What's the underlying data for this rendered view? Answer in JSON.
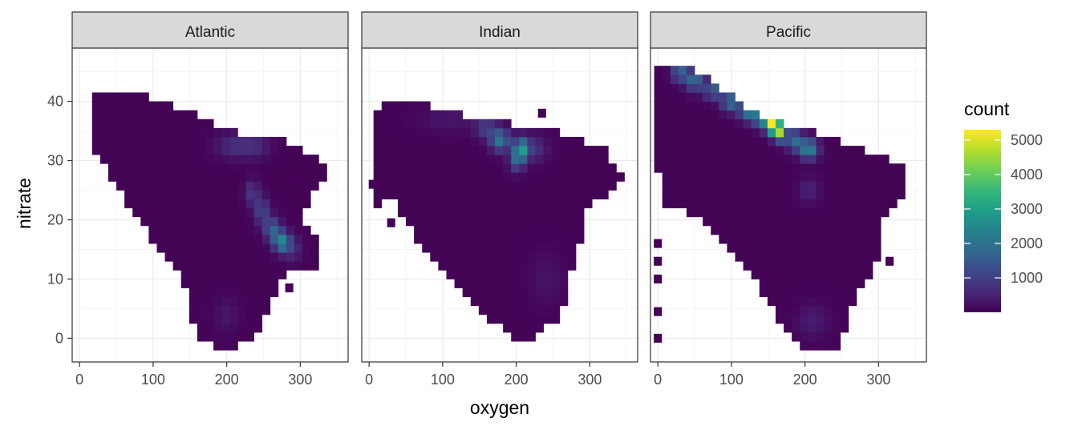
{
  "chart_data": {
    "type": "heatmap",
    "subtype": "2d-bin",
    "xlabel": "oxygen",
    "ylabel": "nitrate",
    "xlim": [
      -10,
      365
    ],
    "ylim": [
      -4,
      49
    ],
    "x_ticks": [
      0,
      100,
      200,
      300
    ],
    "x_tick_labels": [
      "0",
      "100",
      "200",
      "300"
    ],
    "y_ticks": [
      0,
      10,
      20,
      30,
      40
    ],
    "y_tick_labels": [
      "0",
      "10",
      "20",
      "30",
      "40"
    ],
    "grid": true,
    "bin_width_x": 11,
    "bin_width_y": 1.5,
    "colorscale": "viridis",
    "legend": {
      "title": "count",
      "position": "right",
      "min": 1,
      "max": 5300,
      "ticks": [
        1000,
        2000,
        3000,
        4000,
        5000
      ],
      "tick_labels": [
        "1000",
        "2000",
        "3000",
        "4000",
        "5000"
      ]
    },
    "colors": {
      "panel_border": "#333333",
      "strip_fill": "#d9d9d9",
      "grid_major": "#ebebeb",
      "grid_minor": "#f5f5f5",
      "viridis": [
        "#440154",
        "#482878",
        "#3e4989",
        "#31688e",
        "#26828e",
        "#1f9e89",
        "#35b779",
        "#6ece58",
        "#b5de2b",
        "#fde725"
      ]
    },
    "facets": [
      {
        "name": "Atlantic",
        "outline": [
          [
            12,
            40
          ],
          [
            25,
            41.5
          ],
          [
            85,
            41.5
          ],
          [
            160,
            37.5
          ],
          [
            220,
            34.5
          ],
          [
            280,
            33.5
          ],
          [
            320,
            31
          ],
          [
            340,
            29
          ],
          [
            320,
            25
          ],
          [
            300,
            21
          ],
          [
            320,
            17
          ],
          [
            325,
            12
          ],
          [
            285,
            11
          ],
          [
            260,
            7
          ],
          [
            250,
            3
          ],
          [
            230,
            -1
          ],
          [
            190,
            -1.5
          ],
          [
            165,
            -1
          ],
          [
            150,
            3
          ],
          [
            145,
            8
          ],
          [
            125,
            13
          ],
          [
            100,
            16
          ],
          [
            70,
            22
          ],
          [
            45,
            27
          ],
          [
            25,
            31
          ],
          [
            12,
            34
          ]
        ],
        "hotspots": [
          {
            "x": 275,
            "y": 16.3,
            "count": 2400,
            "sx": 8,
            "sy": 1.2
          },
          {
            "x": 262,
            "y": 18.5,
            "count": 1500,
            "sx": 8,
            "sy": 1.3
          },
          {
            "x": 248,
            "y": 21.5,
            "count": 1100,
            "sx": 7,
            "sy": 1.5
          },
          {
            "x": 235,
            "y": 24.5,
            "count": 850,
            "sx": 7,
            "sy": 1.5
          },
          {
            "x": 210,
            "y": 32.5,
            "count": 650,
            "sx": 18,
            "sy": 1.5
          },
          {
            "x": 240,
            "y": 32.5,
            "count": 500,
            "sx": 14,
            "sy": 1.5
          },
          {
            "x": 290,
            "y": 15,
            "count": 600,
            "sx": 9,
            "sy": 1.5
          },
          {
            "x": 200,
            "y": 4,
            "count": 300,
            "sx": 12,
            "sy": 2
          }
        ]
      },
      {
        "name": "Indian",
        "outline": [
          [
            10,
            38
          ],
          [
            15,
            39.5
          ],
          [
            65,
            40
          ],
          [
            140,
            37.5
          ],
          [
            230,
            35.5
          ],
          [
            270,
            34.5
          ],
          [
            320,
            32
          ],
          [
            345,
            27.5
          ],
          [
            330,
            24.5
          ],
          [
            300,
            23.5
          ],
          [
            290,
            18
          ],
          [
            280,
            14
          ],
          [
            272,
            9
          ],
          [
            262,
            4
          ],
          [
            245,
            2
          ],
          [
            225,
            0
          ],
          [
            212,
            -1
          ],
          [
            195,
            0
          ],
          [
            165,
            3
          ],
          [
            150,
            5
          ],
          [
            120,
            9
          ],
          [
            100,
            12
          ],
          [
            70,
            15
          ],
          [
            50,
            20
          ],
          [
            35,
            23
          ],
          [
            15,
            23
          ],
          [
            5,
            19
          ],
          [
            5,
            30
          ]
        ],
        "hotspots": [
          {
            "x": 207,
            "y": 32,
            "count": 2600,
            "sx": 7,
            "sy": 1.3
          },
          {
            "x": 178,
            "y": 33.5,
            "count": 2100,
            "sx": 9,
            "sy": 1.3
          },
          {
            "x": 158,
            "y": 35.5,
            "count": 900,
            "sx": 10,
            "sy": 1.3
          },
          {
            "x": 200,
            "y": 30,
            "count": 1400,
            "sx": 7,
            "sy": 1.3
          },
          {
            "x": 225,
            "y": 32,
            "count": 700,
            "sx": 12,
            "sy": 1.5
          },
          {
            "x": 110,
            "y": 37,
            "count": 300,
            "sx": 30,
            "sy": 1.5
          },
          {
            "x": 240,
            "y": 10,
            "count": 250,
            "sx": 15,
            "sy": 3
          }
        ]
      },
      {
        "name": "Pacific",
        "outline": [
          [
            0,
            46.5
          ],
          [
            40,
            46.5
          ],
          [
            90,
            42
          ],
          [
            145,
            37
          ],
          [
            205,
            35
          ],
          [
            270,
            32.5
          ],
          [
            340,
            29
          ],
          [
            340,
            24
          ],
          [
            315,
            22
          ],
          [
            305,
            19
          ],
          [
            300,
            14
          ],
          [
            288,
            11
          ],
          [
            270,
            7
          ],
          [
            258,
            3
          ],
          [
            248,
            -1.5
          ],
          [
            195,
            -1.5
          ],
          [
            175,
            1
          ],
          [
            150,
            6
          ],
          [
            130,
            10
          ],
          [
            105,
            14
          ],
          [
            80,
            17
          ],
          [
            55,
            20
          ],
          [
            35,
            22
          ],
          [
            10,
            22
          ],
          [
            0,
            28
          ]
        ],
        "hotspots": [
          {
            "x": 155,
            "y": 36.3,
            "count": 5300,
            "sx": 6,
            "sy": 1.1
          },
          {
            "x": 165,
            "y": 35,
            "count": 4200,
            "sx": 6,
            "sy": 1.1
          },
          {
            "x": 140,
            "y": 37.5,
            "count": 3000,
            "sx": 7,
            "sy": 1.2
          },
          {
            "x": 120,
            "y": 38.5,
            "count": 2200,
            "sx": 7,
            "sy": 1.2
          },
          {
            "x": 98,
            "y": 40,
            "count": 1900,
            "sx": 8,
            "sy": 1.2
          },
          {
            "x": 75,
            "y": 42,
            "count": 1600,
            "sx": 8,
            "sy": 1.2
          },
          {
            "x": 50,
            "y": 43.5,
            "count": 1900,
            "sx": 8,
            "sy": 1.2
          },
          {
            "x": 30,
            "y": 45,
            "count": 1700,
            "sx": 8,
            "sy": 1.2
          },
          {
            "x": 205,
            "y": 32,
            "count": 2400,
            "sx": 9,
            "sy": 1.2
          },
          {
            "x": 185,
            "y": 33.5,
            "count": 1800,
            "sx": 8,
            "sy": 1.2
          },
          {
            "x": 205,
            "y": 25,
            "count": 500,
            "sx": 10,
            "sy": 1.5
          },
          {
            "x": 210,
            "y": 3,
            "count": 400,
            "sx": 15,
            "sy": 2
          }
        ]
      }
    ],
    "isolated_bins": [
      {
        "panel": "Atlantic",
        "x": 285,
        "y": 8.5
      },
      {
        "panel": "Atlantic",
        "x": 290,
        "y": 24.5
      },
      {
        "panel": "Atlantic",
        "x": 295,
        "y": 26.5
      },
      {
        "panel": "Indian",
        "x": 5,
        "y": 26
      },
      {
        "panel": "Indian",
        "x": 30,
        "y": 19.5
      },
      {
        "panel": "Indian",
        "x": 235,
        "y": 38
      },
      {
        "panel": "Pacific",
        "x": 0,
        "y": 10
      },
      {
        "panel": "Pacific",
        "x": 0,
        "y": 13
      },
      {
        "panel": "Pacific",
        "x": 0,
        "y": 16
      },
      {
        "panel": "Pacific",
        "x": 0,
        "y": 4.5
      },
      {
        "panel": "Pacific",
        "x": 0,
        "y": 0
      },
      {
        "panel": "Pacific",
        "x": 40,
        "y": 25
      },
      {
        "panel": "Pacific",
        "x": 315,
        "y": 13
      }
    ]
  }
}
